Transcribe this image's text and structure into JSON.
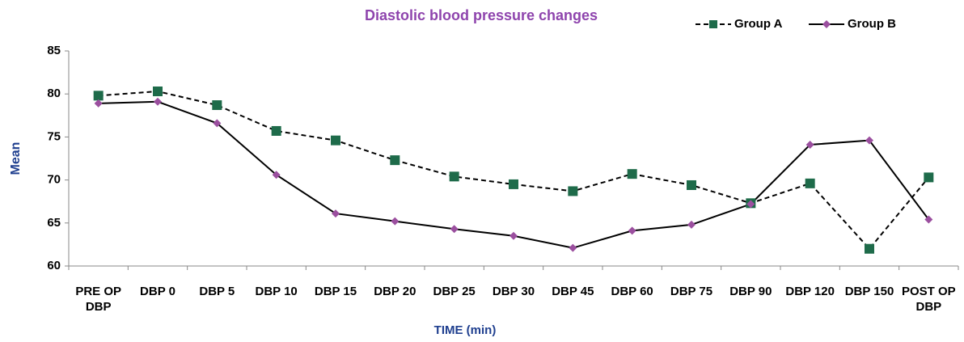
{
  "chart_data": {
    "type": "line",
    "title": "Diastolic blood pressure changes",
    "x_label": "TIME (min)",
    "y_label": "Mean",
    "categories": [
      "PRE OP DBP",
      "DBP 0",
      "DBP 5",
      "DBP 10",
      "DBP 15",
      "DBP 20",
      "DBP 25",
      "DBP 30",
      "DBP 45",
      "DBP 60",
      "DBP 75",
      "DBP 90",
      "DBP 120",
      "DBP 150",
      "POST OP DBP"
    ],
    "series": [
      {
        "name": "Group A",
        "color": "#1e6b4a",
        "line_color": "#000000",
        "dash": true,
        "marker": "square",
        "values": [
          79.8,
          80.3,
          78.7,
          75.7,
          74.6,
          72.3,
          70.4,
          69.5,
          68.7,
          70.7,
          69.4,
          67.3,
          69.6,
          62.0,
          70.3
        ]
      },
      {
        "name": "Group B",
        "color": "#9b4f9f",
        "line_color": "#000000",
        "dash": false,
        "marker": "diamond",
        "values": [
          78.9,
          79.1,
          76.6,
          70.6,
          66.1,
          65.2,
          64.3,
          63.5,
          62.1,
          64.1,
          64.8,
          67.2,
          74.1,
          74.6,
          65.4
        ]
      }
    ],
    "ylim": [
      60,
      85
    ],
    "yticks": [
      60,
      65,
      70,
      75,
      80,
      85
    ],
    "grid": false,
    "legend": "top-right"
  }
}
